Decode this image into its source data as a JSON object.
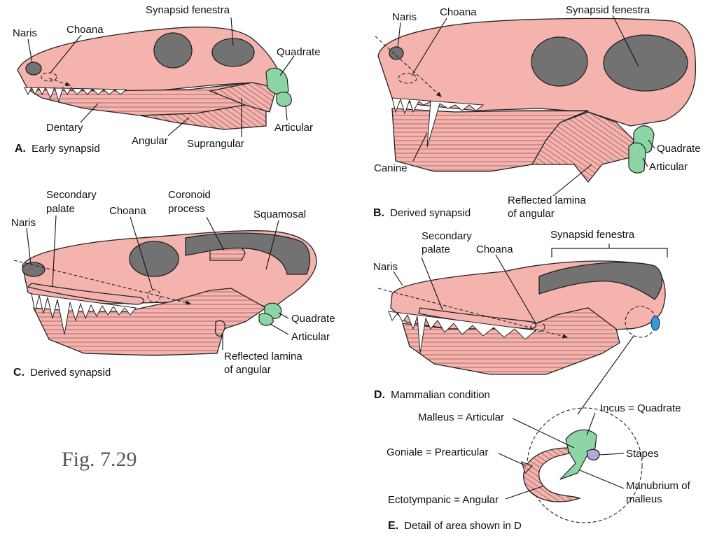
{
  "figure_label": "Fig. 7.29",
  "colors": {
    "bone": "#f4b3ad",
    "fenestra": "#727272",
    "quadrate_articular": "#8dd5a4",
    "stapes": "#b7a6e0",
    "detail_blue": "#2d9be0"
  },
  "panels": {
    "a": {
      "letter": "A.",
      "caption": "Early synapsid",
      "labels": {
        "synapsid_fenestra": "Synapsid fenestra",
        "naris": "Naris",
        "choana": "Choana",
        "quadrate": "Quadrate",
        "dentary": "Dentary",
        "articular": "Articular",
        "angular": "Angular",
        "surangular": "Suprangular"
      }
    },
    "b": {
      "letter": "B.",
      "caption": "Derived synapsid",
      "labels": {
        "naris": "Naris",
        "choana": "Choana",
        "synapsid_fenestra": "Synapsid fenestra",
        "canine": "Canine",
        "quadrate": "Quadrate",
        "articular": "Articular",
        "reflected_lamina_1": "Reflected lamina",
        "reflected_lamina_2": "of angular"
      }
    },
    "c": {
      "letter": "C.",
      "caption": "Derived synapsid",
      "labels": {
        "secondary_palate_1": "Secondary",
        "secondary_palate_2": "palate",
        "naris": "Naris",
        "choana": "Choana",
        "coronoid_1": "Coronoid",
        "coronoid_2": "process",
        "squamosal": "Squamosal",
        "quadrate": "Quadrate",
        "articular": "Articular",
        "reflected_lamina_1": "Reflected lamina",
        "reflected_lamina_2": "of angular"
      }
    },
    "d": {
      "letter": "D.",
      "caption": "Mammalian condition",
      "labels": {
        "secondary_palate_1": "Secondary",
        "secondary_palate_2": "palate",
        "choana": "Choana",
        "synapsid_fenestra": "Synapsid fenestra",
        "naris": "Naris"
      }
    },
    "e": {
      "letter": "E.",
      "caption": "Detail of area shown in D",
      "labels": {
        "incus": "Incus = Quadrate",
        "malleus": "Malleus = Articular",
        "goniale": "Goniale = Prearticular",
        "stapes": "Stapes",
        "manubrium_1": "Manubrium of",
        "manubrium_2": "malleus",
        "ectotympanic": "Ectotympanic = Angular"
      }
    }
  }
}
